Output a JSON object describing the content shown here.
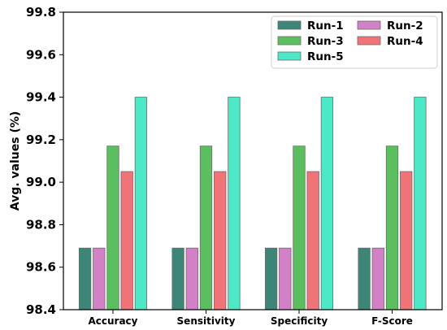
{
  "chart_data": {
    "type": "bar",
    "title": "",
    "xlabel": "",
    "ylabel": "Avg. values (%)",
    "ylim": [
      98.4,
      99.8
    ],
    "yticks": [
      "98.4",
      "98.6",
      "98.8",
      "99.0",
      "99.2",
      "99.4",
      "99.6",
      "99.8"
    ],
    "categories": [
      "Accuracy",
      "Sensitivity",
      "Specificity",
      "F-Score"
    ],
    "grid": false,
    "legend_position": "top-right",
    "series": [
      {
        "name": "Run-1",
        "color": "#3d8577",
        "values": [
          98.69,
          98.69,
          98.69,
          98.69
        ]
      },
      {
        "name": "Run-2",
        "color": "#d281c7",
        "values": [
          98.69,
          98.69,
          98.69,
          98.69
        ]
      },
      {
        "name": "Run-3",
        "color": "#5cbf5f",
        "values": [
          99.17,
          99.17,
          99.17,
          99.17
        ]
      },
      {
        "name": "Run-4",
        "color": "#ef7377",
        "values": [
          99.05,
          99.05,
          99.05,
          99.05
        ]
      },
      {
        "name": "Run-5",
        "color": "#4de8c6",
        "values": [
          99.4,
          99.4,
          99.4,
          99.4
        ]
      }
    ]
  }
}
